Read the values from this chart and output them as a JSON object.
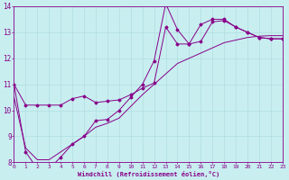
{
  "xlabel": "Windchill (Refroidissement éolien,°C)",
  "bg_color": "#c8eef0",
  "grid_color": "#b0dde0",
  "line_color": "#880088",
  "xlim": [
    0,
    23
  ],
  "ylim": [
    8,
    14
  ],
  "yticks": [
    8,
    9,
    10,
    11,
    12,
    13,
    14
  ],
  "xticks": [
    0,
    1,
    2,
    3,
    4,
    5,
    6,
    7,
    8,
    9,
    10,
    11,
    12,
    13,
    14,
    15,
    16,
    17,
    18,
    19,
    20,
    21,
    22,
    23
  ],
  "series1_x": [
    0,
    1,
    2,
    3,
    4,
    5,
    6,
    7,
    8,
    9,
    10,
    11,
    12,
    13,
    14,
    15,
    16,
    17,
    18,
    19,
    20,
    21,
    22,
    23
  ],
  "series1_y": [
    11.0,
    10.2,
    10.2,
    10.2,
    10.2,
    10.45,
    10.55,
    10.3,
    10.35,
    10.4,
    10.6,
    10.85,
    11.05,
    13.2,
    12.55,
    12.55,
    13.3,
    13.5,
    13.5,
    13.2,
    13.0,
    12.8,
    12.75,
    12.75
  ],
  "series2_x": [
    0,
    1,
    2,
    3,
    4,
    5,
    6,
    7,
    8,
    9,
    10,
    11,
    12,
    13,
    14,
    15,
    16,
    17,
    18,
    19,
    20,
    21,
    22,
    23
  ],
  "series2_y": [
    11.0,
    8.4,
    7.75,
    7.75,
    8.2,
    8.7,
    9.0,
    9.6,
    9.65,
    10.0,
    10.5,
    11.0,
    11.9,
    14.1,
    13.1,
    12.55,
    12.65,
    13.4,
    13.45,
    13.2,
    13.0,
    12.8,
    12.75,
    12.75
  ],
  "series3_x": [
    0,
    1,
    2,
    3,
    4,
    5,
    6,
    7,
    8,
    9,
    10,
    11,
    12,
    13,
    14,
    15,
    16,
    17,
    18,
    19,
    20,
    21,
    22,
    23
  ],
  "series3_y": [
    10.5,
    8.55,
    8.1,
    8.1,
    8.4,
    8.7,
    9.0,
    9.35,
    9.5,
    9.7,
    10.15,
    10.6,
    11.0,
    11.4,
    11.8,
    12.0,
    12.2,
    12.4,
    12.6,
    12.7,
    12.8,
    12.85,
    12.87,
    12.87
  ]
}
